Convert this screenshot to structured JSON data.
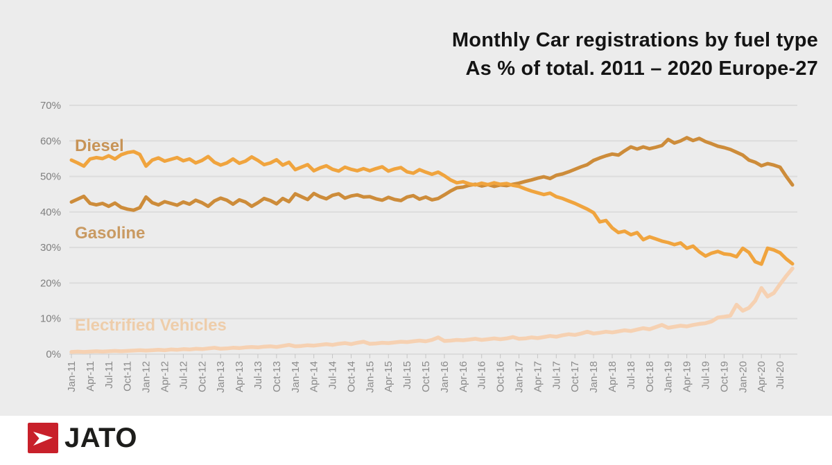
{
  "title": {
    "line1": "Monthly Car registrations by fuel type",
    "line2": "As % of total. 2011 – 2020 Europe-27"
  },
  "footer": {
    "brand": "JATO",
    "logo_icon": "jato-arrow-icon",
    "logo_color": "#c8202a"
  },
  "colors": {
    "background": "#ececec",
    "gridline": "#dcdcdc",
    "axis_text": "#7f7f7f",
    "title_text": "#141414",
    "footer_background": "#ffffff"
  },
  "chart_data": {
    "type": "line",
    "title": "Monthly Car registrations by fuel type",
    "subtitle": "As % of total. 2011 – 2020 Europe-27",
    "interval": "monthly",
    "x_start": "Jan-11",
    "x_end": "Sep-20",
    "x_tick_labels": [
      "Jan-11",
      "Apr-11",
      "Jul-11",
      "Oct-11",
      "Jan-12",
      "Apr-12",
      "Jul-12",
      "Oct-12",
      "Jan-13",
      "Apr-13",
      "Jul-13",
      "Oct-13",
      "Jan-14",
      "Apr-14",
      "Jul-14",
      "Oct-14",
      "Jan-15",
      "Apr-15",
      "Jul-15",
      "Oct-15",
      "Jan-16",
      "Apr-16",
      "Jul-16",
      "Oct-16",
      "Jan-17",
      "Apr-17",
      "Jul-17",
      "Oct-17",
      "Jan-18",
      "Apr-18",
      "Jul-18",
      "Oct-18",
      "Jan-19",
      "Apr-19",
      "Jul-19",
      "Oct-19",
      "Jan-20",
      "Apr-20",
      "Jul-20"
    ],
    "x_tick_every_n_months": 3,
    "y_tick_labels": [
      "0%",
      "10%",
      "20%",
      "30%",
      "40%",
      "50%",
      "60%",
      "70%"
    ],
    "ylim": [
      0,
      70
    ],
    "grid": "horizontal",
    "legend_position": "inline-labels",
    "series": [
      {
        "name": "Diesel",
        "color": "#f0a43e",
        "label_color": "#c79356",
        "values": [
          54.6,
          53.8,
          52.9,
          54.9,
          55.3,
          55.0,
          55.8,
          54.9,
          56.1,
          56.7,
          57.0,
          56.2,
          52.9,
          54.6,
          55.2,
          54.3,
          54.8,
          55.3,
          54.4,
          54.9,
          53.8,
          54.5,
          55.6,
          54.0,
          53.2,
          53.8,
          54.9,
          53.7,
          54.3,
          55.5,
          54.5,
          53.3,
          53.8,
          54.7,
          53.2,
          54.0,
          51.9,
          52.6,
          53.3,
          51.6,
          52.4,
          53.0,
          52.0,
          51.5,
          52.6,
          52.0,
          51.6,
          52.2,
          51.6,
          52.2,
          52.7,
          51.5,
          52.1,
          52.5,
          51.3,
          50.9,
          51.9,
          51.2,
          50.6,
          51.2,
          50.2,
          49.0,
          48.2,
          48.5,
          47.9,
          47.6,
          48.1,
          47.7,
          48.2,
          47.8,
          48.0,
          47.5,
          47.2,
          46.5,
          45.9,
          45.4,
          44.9,
          45.3,
          44.3,
          43.8,
          43.1,
          42.4,
          41.6,
          40.8,
          39.8,
          37.2,
          37.6,
          35.5,
          34.2,
          34.6,
          33.6,
          34.2,
          32.2,
          33.0,
          32.4,
          31.8,
          31.4,
          30.8,
          31.3,
          29.8,
          30.4,
          28.8,
          27.6,
          28.4,
          28.9,
          28.2,
          28.0,
          27.4,
          29.8,
          28.6,
          26.0,
          25.3,
          29.8,
          29.3,
          28.5,
          26.8,
          25.4
        ]
      },
      {
        "name": "Gasoline",
        "color": "#cd8c3a",
        "label_color": "#c99a62",
        "values": [
          42.8,
          43.6,
          44.4,
          42.4,
          42.0,
          42.4,
          41.6,
          42.5,
          41.3,
          40.8,
          40.5,
          41.2,
          44.2,
          42.6,
          42.0,
          42.9,
          42.4,
          41.9,
          42.8,
          42.2,
          43.3,
          42.6,
          41.6,
          43.1,
          43.9,
          43.3,
          42.2,
          43.4,
          42.8,
          41.6,
          42.6,
          43.8,
          43.2,
          42.3,
          43.8,
          42.9,
          45.1,
          44.3,
          43.5,
          45.2,
          44.3,
          43.7,
          44.7,
          45.1,
          43.9,
          44.5,
          44.8,
          44.2,
          44.3,
          43.7,
          43.3,
          44.1,
          43.5,
          43.2,
          44.2,
          44.6,
          43.6,
          44.2,
          43.4,
          43.8,
          44.8,
          45.9,
          46.8,
          47.0,
          47.5,
          47.8,
          47.3,
          47.7,
          47.2,
          47.6,
          47.4,
          47.8,
          48.1,
          48.6,
          49.0,
          49.5,
          49.9,
          49.4,
          50.3,
          50.7,
          51.3,
          52.0,
          52.7,
          53.3,
          54.5,
          55.2,
          55.8,
          56.3,
          56.0,
          57.2,
          58.3,
          57.7,
          58.3,
          57.8,
          58.2,
          58.7,
          60.4,
          59.4,
          60.0,
          60.9,
          60.1,
          60.7,
          59.8,
          59.2,
          58.5,
          58.1,
          57.6,
          56.8,
          56.0,
          54.6,
          54.0,
          53.0,
          53.6,
          53.2,
          52.6,
          50.0,
          47.6
        ]
      },
      {
        "name": "Electrified Vehicles",
        "color": "#f6d1b2",
        "label_color": "#eecdaa",
        "values": [
          0.6,
          0.7,
          0.6,
          0.7,
          0.8,
          0.7,
          0.8,
          0.9,
          0.8,
          0.9,
          1.0,
          1.1,
          1.0,
          1.1,
          1.2,
          1.1,
          1.3,
          1.2,
          1.4,
          1.3,
          1.5,
          1.4,
          1.6,
          1.8,
          1.5,
          1.6,
          1.8,
          1.7,
          1.9,
          2.0,
          1.9,
          2.1,
          2.2,
          2.0,
          2.3,
          2.6,
          2.2,
          2.3,
          2.5,
          2.4,
          2.6,
          2.8,
          2.6,
          2.9,
          3.1,
          2.8,
          3.2,
          3.5,
          2.9,
          3.0,
          3.2,
          3.1,
          3.3,
          3.5,
          3.4,
          3.6,
          3.8,
          3.6,
          4.0,
          4.7,
          3.7,
          3.8,
          4.0,
          3.9,
          4.1,
          4.3,
          4.0,
          4.2,
          4.4,
          4.2,
          4.4,
          4.8,
          4.3,
          4.4,
          4.7,
          4.5,
          4.8,
          5.1,
          4.9,
          5.3,
          5.6,
          5.4,
          5.8,
          6.3,
          5.8,
          6.0,
          6.3,
          6.1,
          6.4,
          6.7,
          6.5,
          6.9,
          7.3,
          7.0,
          7.6,
          8.2,
          7.4,
          7.7,
          8.0,
          7.8,
          8.2,
          8.5,
          8.7,
          9.2,
          10.3,
          10.5,
          10.8,
          13.9,
          12.2,
          13.0,
          15.0,
          18.6,
          16.2,
          17.2,
          19.7,
          22.0,
          24.1
        ]
      }
    ]
  }
}
